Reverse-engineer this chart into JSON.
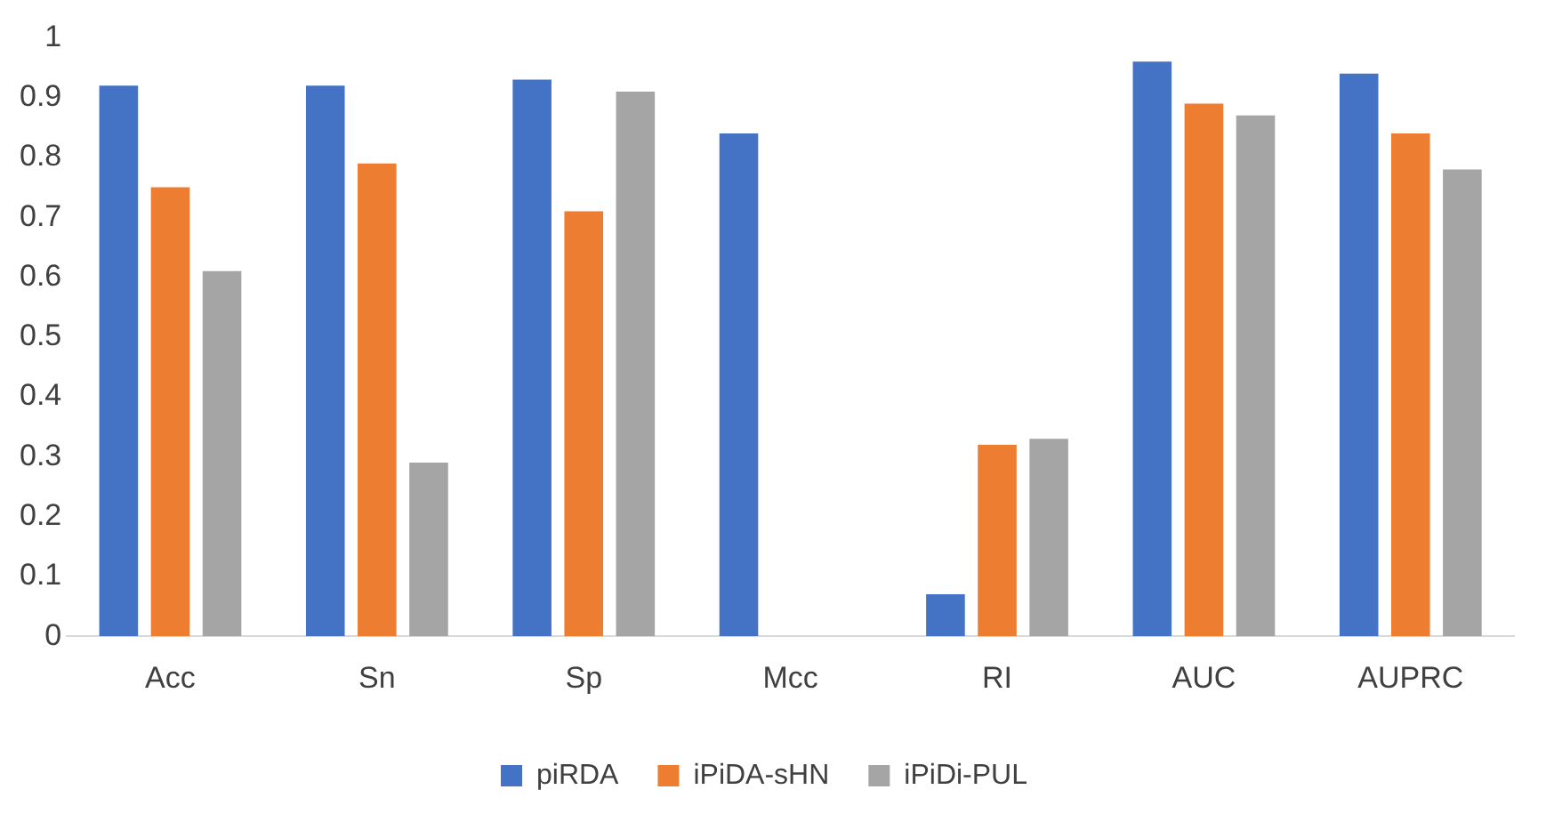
{
  "chart_data": {
    "type": "bar",
    "categories": [
      "Acc",
      "Sn",
      "Sp",
      "Mcc",
      "RI",
      "AUC",
      "AUPRC"
    ],
    "series": [
      {
        "name": "piRDA",
        "color": "#4472c4",
        "values": [
          0.92,
          0.92,
          0.93,
          0.84,
          0.07,
          0.96,
          0.94
        ]
      },
      {
        "name": "iPiDA-sHN",
        "color": "#ed7d31",
        "values": [
          0.75,
          0.79,
          0.71,
          null,
          0.32,
          0.89,
          0.84
        ]
      },
      {
        "name": "iPiDi-PUL",
        "color": "#a5a5a5",
        "values": [
          0.61,
          0.29,
          0.91,
          null,
          0.33,
          0.87,
          0.78
        ]
      }
    ],
    "ylim": [
      0,
      1
    ],
    "yticks": [
      0,
      0.1,
      0.2,
      0.3,
      0.4,
      0.5,
      0.6,
      0.7,
      0.8,
      0.9,
      1
    ],
    "grid": false,
    "legend": "bottom"
  }
}
